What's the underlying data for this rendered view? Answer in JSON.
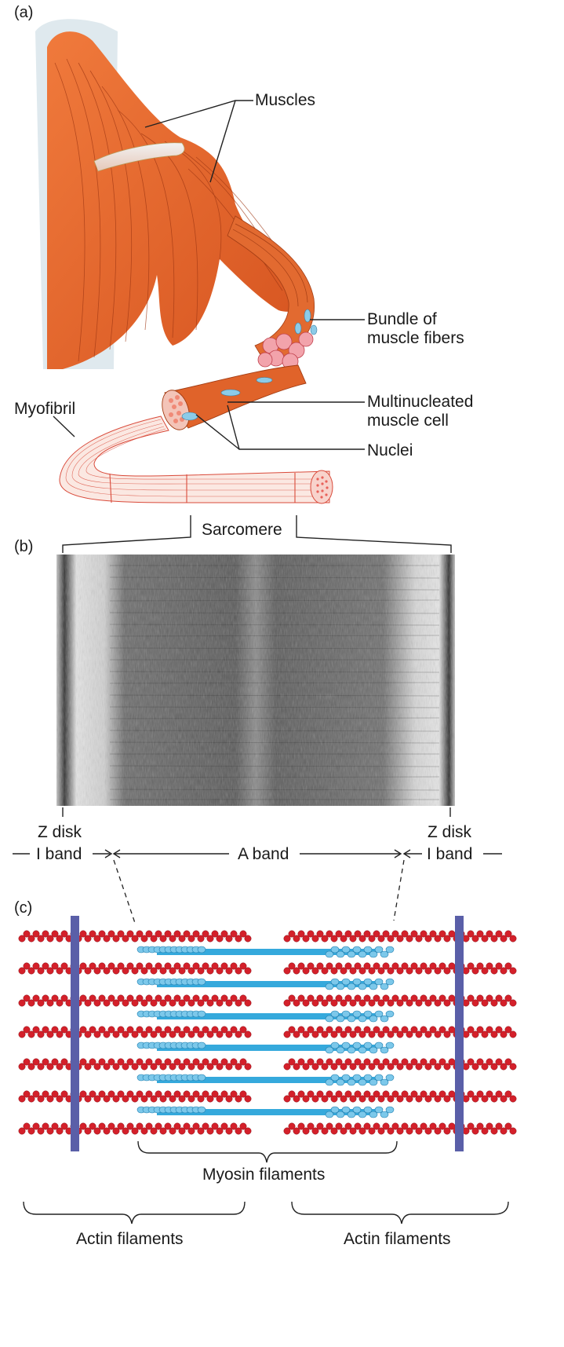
{
  "panels": {
    "a": "(a)",
    "b": "(b)",
    "c": "(c)"
  },
  "labels": {
    "muscles": "Muscles",
    "bundle_line1": "Bundle of",
    "bundle_line2": "muscle fibers",
    "multi_line1": "Multinucleated",
    "multi_line2": "muscle cell",
    "nuclei": "Nuclei",
    "myofibril": "Myofibril",
    "sarcomere": "Sarcomere",
    "z_disk_left": "Z disk",
    "z_disk_right": "Z disk",
    "i_band_left": "I band",
    "a_band": "A band",
    "i_band_right": "I band",
    "myosin": "Myosin filaments",
    "actin_left": "Actin filaments",
    "actin_right": "Actin filaments"
  },
  "colors": {
    "muscle": "#e8632b",
    "muscle_dark": "#b8401a",
    "tendon": "#f3e6a8",
    "nucleus": "#8ccbe8",
    "myofibril_line": "#d94a3a",
    "actin": "#d4202a",
    "myosin": "#35a9dc",
    "z_disk": "#5a5fa8"
  },
  "icons": {
    "micrograph": "electron-micrograph-of-sarcomere",
    "muscle": "arm-shoulder-muscle-illustration"
  }
}
